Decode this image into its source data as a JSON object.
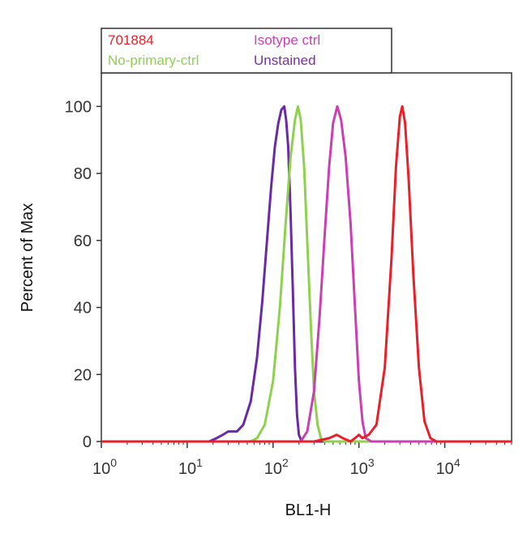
{
  "chart_data": {
    "type": "line",
    "xlabel": "BL1-H",
    "ylabel": "Percent of Max",
    "x_scale": "log",
    "xlim": [
      1,
      60000
    ],
    "ylim": [
      0,
      110
    ],
    "x_ticks": [
      {
        "base": "10",
        "exp": "0",
        "value": 1
      },
      {
        "base": "10",
        "exp": "1",
        "value": 10
      },
      {
        "base": "10",
        "exp": "2",
        "value": 100
      },
      {
        "base": "10",
        "exp": "3",
        "value": 1000
      },
      {
        "base": "10",
        "exp": "4",
        "value": 10000
      }
    ],
    "y_ticks": [
      "0",
      "20",
      "40",
      "60",
      "80",
      "100"
    ],
    "legend": {
      "placement": "top-left",
      "entries": [
        {
          "name": "701884",
          "color": "#e8202a"
        },
        {
          "name": "Isotype ctrl",
          "color": "#c93fb4"
        },
        {
          "name": "No-primary-ctrl",
          "color": "#8fd14f"
        },
        {
          "name": "Unstained",
          "color": "#7a2fa0"
        }
      ]
    },
    "series": [
      {
        "name": "Unstained",
        "color": "#6a2aa6",
        "points": [
          [
            1,
            0
          ],
          [
            18,
            0
          ],
          [
            22,
            1
          ],
          [
            26,
            2
          ],
          [
            30,
            3
          ],
          [
            38,
            3
          ],
          [
            45,
            5
          ],
          [
            55,
            12
          ],
          [
            65,
            25
          ],
          [
            75,
            42
          ],
          [
            85,
            60
          ],
          [
            95,
            76
          ],
          [
            105,
            88
          ],
          [
            115,
            95
          ],
          [
            125,
            99
          ],
          [
            135,
            100
          ],
          [
            142,
            96
          ],
          [
            150,
            88
          ],
          [
            160,
            68
          ],
          [
            170,
            45
          ],
          [
            180,
            22
          ],
          [
            190,
            8
          ],
          [
            200,
            2
          ],
          [
            215,
            0
          ],
          [
            60000,
            0
          ]
        ]
      },
      {
        "name": "No-primary-ctrl",
        "color": "#8fd14f",
        "points": [
          [
            1,
            0
          ],
          [
            55,
            0
          ],
          [
            65,
            1
          ],
          [
            80,
            5
          ],
          [
            100,
            18
          ],
          [
            120,
            40
          ],
          [
            140,
            65
          ],
          [
            160,
            85
          ],
          [
            180,
            96
          ],
          [
            195,
            100
          ],
          [
            210,
            96
          ],
          [
            230,
            82
          ],
          [
            250,
            60
          ],
          [
            275,
            35
          ],
          [
            300,
            15
          ],
          [
            330,
            5
          ],
          [
            360,
            1
          ],
          [
            400,
            0
          ],
          [
            60000,
            0
          ]
        ]
      },
      {
        "name": "Isotype ctrl",
        "color": "#c93fb4",
        "points": [
          [
            1,
            0
          ],
          [
            210,
            0
          ],
          [
            250,
            3
          ],
          [
            300,
            15
          ],
          [
            350,
            38
          ],
          [
            400,
            62
          ],
          [
            450,
            82
          ],
          [
            500,
            95
          ],
          [
            560,
            100
          ],
          [
            620,
            96
          ],
          [
            700,
            85
          ],
          [
            800,
            65
          ],
          [
            900,
            40
          ],
          [
            1000,
            18
          ],
          [
            1100,
            6
          ],
          [
            1200,
            1
          ],
          [
            1400,
            0
          ],
          [
            60000,
            0
          ]
        ]
      },
      {
        "name": "701884",
        "color": "#e8202a",
        "points": [
          [
            1,
            0
          ],
          [
            300,
            0
          ],
          [
            450,
            1
          ],
          [
            550,
            2
          ],
          [
            650,
            1
          ],
          [
            800,
            0
          ],
          [
            900,
            1
          ],
          [
            1000,
            2
          ],
          [
            1100,
            1
          ],
          [
            1300,
            2
          ],
          [
            1600,
            5
          ],
          [
            2000,
            22
          ],
          [
            2400,
            55
          ],
          [
            2700,
            82
          ],
          [
            3000,
            97
          ],
          [
            3200,
            100
          ],
          [
            3450,
            95
          ],
          [
            3800,
            78
          ],
          [
            4300,
            50
          ],
          [
            5000,
            22
          ],
          [
            5800,
            6
          ],
          [
            6800,
            1
          ],
          [
            8000,
            0
          ],
          [
            60000,
            0
          ]
        ]
      }
    ]
  }
}
